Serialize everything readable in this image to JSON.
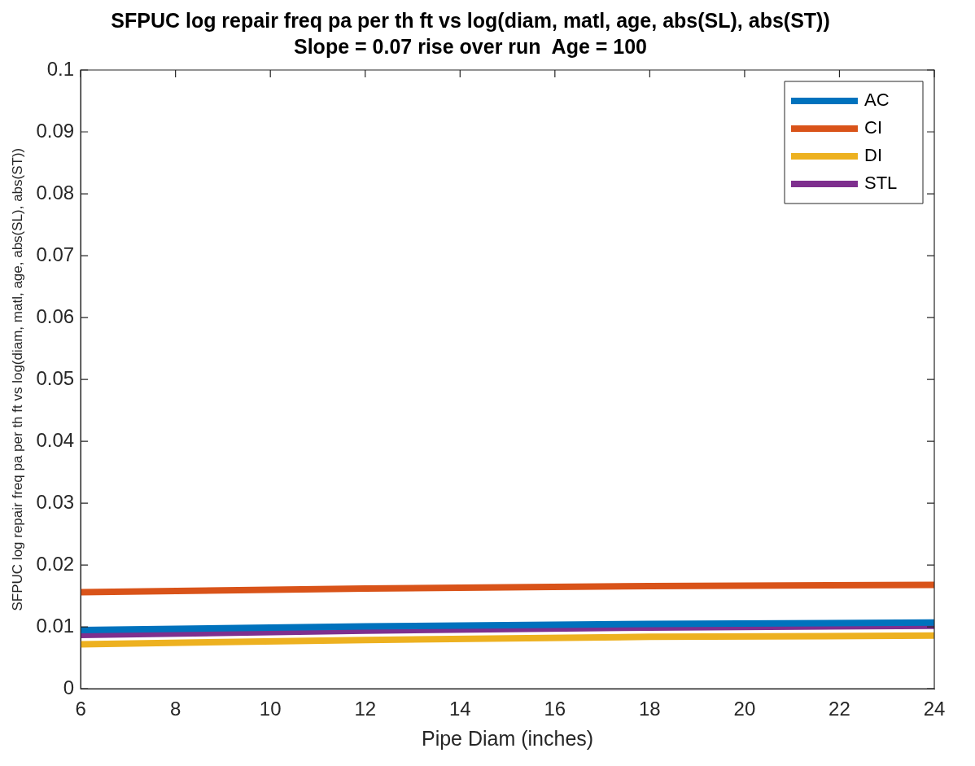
{
  "chart_data": {
    "type": "line",
    "title": "SFPUC log repair freq pa per th ft vs log(diam, matl, age, abs(SL), abs(ST))",
    "subtitle": "Slope = 0.07 rise over run  Age = 100",
    "xlabel": "Pipe Diam (inches)",
    "ylabel": "SFPUC log repair freq pa per th ft vs log(diam, matl, age, abs(SL), abs(ST))",
    "x": [
      6,
      12,
      18,
      24
    ],
    "series": [
      {
        "name": "AC",
        "color": "#0072bd",
        "values": [
          0.0095,
          0.0101,
          0.0105,
          0.0107
        ]
      },
      {
        "name": "CI",
        "color": "#d95319",
        "values": [
          0.0156,
          0.0162,
          0.0166,
          0.0168
        ]
      },
      {
        "name": "DI",
        "color": "#edb120",
        "values": [
          0.0072,
          0.0079,
          0.0084,
          0.0086
        ]
      },
      {
        "name": "STL",
        "color": "#7e2f8e",
        "values": [
          0.0087,
          0.0094,
          0.0099,
          0.0102
        ]
      }
    ],
    "xlim": [
      6,
      24
    ],
    "xticks": [
      6,
      8,
      10,
      12,
      14,
      16,
      18,
      20,
      22,
      24
    ],
    "ylim": [
      0,
      0.1
    ],
    "yticks": [
      0,
      0.01,
      0.02,
      0.03,
      0.04,
      0.05,
      0.06,
      0.07,
      0.08,
      0.09,
      0.1
    ],
    "grid": false,
    "legend": "top right",
    "marker": "none",
    "line_style": "solid"
  }
}
